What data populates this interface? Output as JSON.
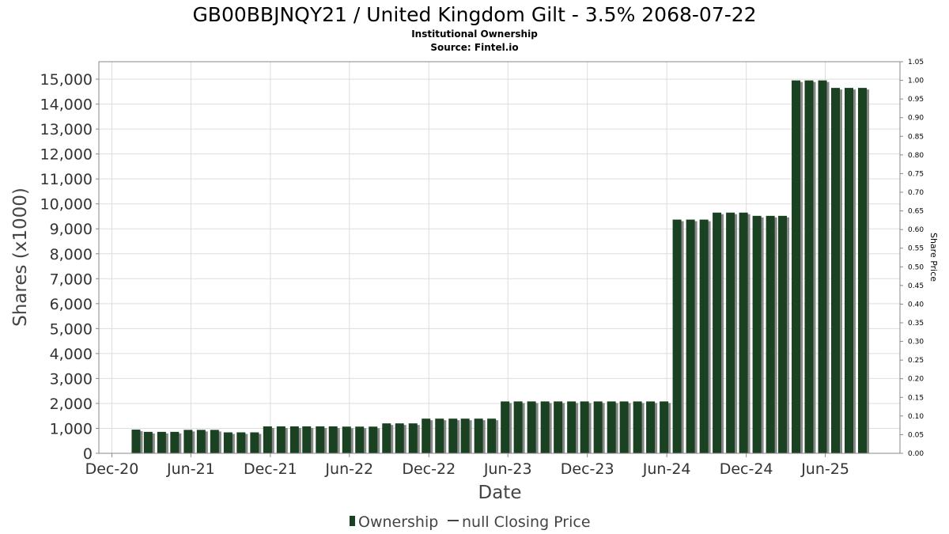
{
  "chart_data": {
    "type": "bar",
    "title": "GB00BBJNQY21 / United Kingdom Gilt - 3.5% 2068-07-22",
    "subtitle_lines": [
      "Institutional Ownership",
      "Source: Fintel.io"
    ],
    "xlabel": "Date",
    "ylabel": "Shares (x1000)",
    "y2label": "Share Price",
    "ylim": [
      0,
      15700
    ],
    "y_ticks": [
      0,
      1000,
      2000,
      3000,
      4000,
      5000,
      6000,
      7000,
      8000,
      9000,
      10000,
      11000,
      12000,
      13000,
      14000,
      15000
    ],
    "y_tick_labels": [
      "0",
      "1,000",
      "2,000",
      "3,000",
      "4,000",
      "5,000",
      "6,000",
      "7,000",
      "8,000",
      "9,000",
      "10,000",
      "11,000",
      "12,000",
      "13,000",
      "14,000",
      "15,000"
    ],
    "y2lim": [
      0,
      1.05
    ],
    "y2_tick_labels": [
      "0.00",
      "0.05",
      "0.10",
      "0.15",
      "0.20",
      "0.25",
      "0.30",
      "0.35",
      "0.40",
      "0.45",
      "0.50",
      "0.55",
      "0.60",
      "0.65",
      "0.70",
      "0.75",
      "0.80",
      "0.85",
      "0.90",
      "0.95",
      "1.00",
      "1.05"
    ],
    "x_range": [
      "2020-11-01",
      "2025-11-20"
    ],
    "x_ticks": [
      {
        "date": "2020-12-01",
        "label": "Dec-20"
      },
      {
        "date": "2021-06-01",
        "label": "Jun-21"
      },
      {
        "date": "2021-12-01",
        "label": "Dec-21"
      },
      {
        "date": "2022-06-01",
        "label": "Jun-22"
      },
      {
        "date": "2022-12-01",
        "label": "Dec-22"
      },
      {
        "date": "2023-06-01",
        "label": "Jun-23"
      },
      {
        "date": "2023-12-01",
        "label": "Dec-23"
      },
      {
        "date": "2024-06-01",
        "label": "Jun-24"
      },
      {
        "date": "2024-12-01",
        "label": "Dec-24"
      },
      {
        "date": "2025-06-01",
        "label": "Jun-25"
      }
    ],
    "grid": true,
    "legend_position": "bottom",
    "series": [
      {
        "name": "Ownership",
        "color": "#1a4222",
        "shadow_color": "#888888",
        "x": [
          "2021-01-31",
          "2021-02-28",
          "2021-03-31",
          "2021-04-30",
          "2021-05-31",
          "2021-06-30",
          "2021-07-31",
          "2021-08-31",
          "2021-09-30",
          "2021-10-31",
          "2021-11-30",
          "2021-12-31",
          "2022-01-31",
          "2022-02-28",
          "2022-03-31",
          "2022-04-30",
          "2022-05-31",
          "2022-06-30",
          "2022-07-31",
          "2022-08-31",
          "2022-09-30",
          "2022-10-31",
          "2022-11-30",
          "2022-12-31",
          "2023-01-31",
          "2023-02-28",
          "2023-03-31",
          "2023-04-30",
          "2023-05-31",
          "2023-06-30",
          "2023-07-31",
          "2023-08-31",
          "2023-09-30",
          "2023-10-31",
          "2023-11-30",
          "2023-12-31",
          "2024-01-31",
          "2024-02-29",
          "2024-03-31",
          "2024-04-30",
          "2024-05-31",
          "2024-06-30",
          "2024-07-31",
          "2024-08-31",
          "2024-09-30",
          "2024-10-31",
          "2024-11-30",
          "2024-12-31",
          "2025-01-31",
          "2025-02-28",
          "2025-03-31",
          "2025-04-30",
          "2025-05-31",
          "2025-06-30",
          "2025-07-31",
          "2025-08-31"
        ],
        "values": [
          950,
          860,
          860,
          860,
          940,
          940,
          940,
          840,
          840,
          840,
          1080,
          1080,
          1080,
          1080,
          1080,
          1080,
          1070,
          1070,
          1070,
          1200,
          1200,
          1200,
          1390,
          1390,
          1390,
          1390,
          1390,
          1390,
          2080,
          2080,
          2080,
          2080,
          2080,
          2080,
          2080,
          2080,
          2080,
          2080,
          2080,
          2080,
          2080,
          9370,
          9370,
          9370,
          9650,
          9650,
          9650,
          9520,
          9520,
          9520,
          14950,
          14950,
          14950,
          14650,
          14650,
          14650
        ]
      },
      {
        "name": "null Closing Price",
        "color": "#444444",
        "values": []
      }
    ]
  },
  "legend": {
    "ownership": "Ownership",
    "closing_price": "null Closing Price",
    "ownership_color": "#1a4222",
    "price_color": "#444444"
  }
}
